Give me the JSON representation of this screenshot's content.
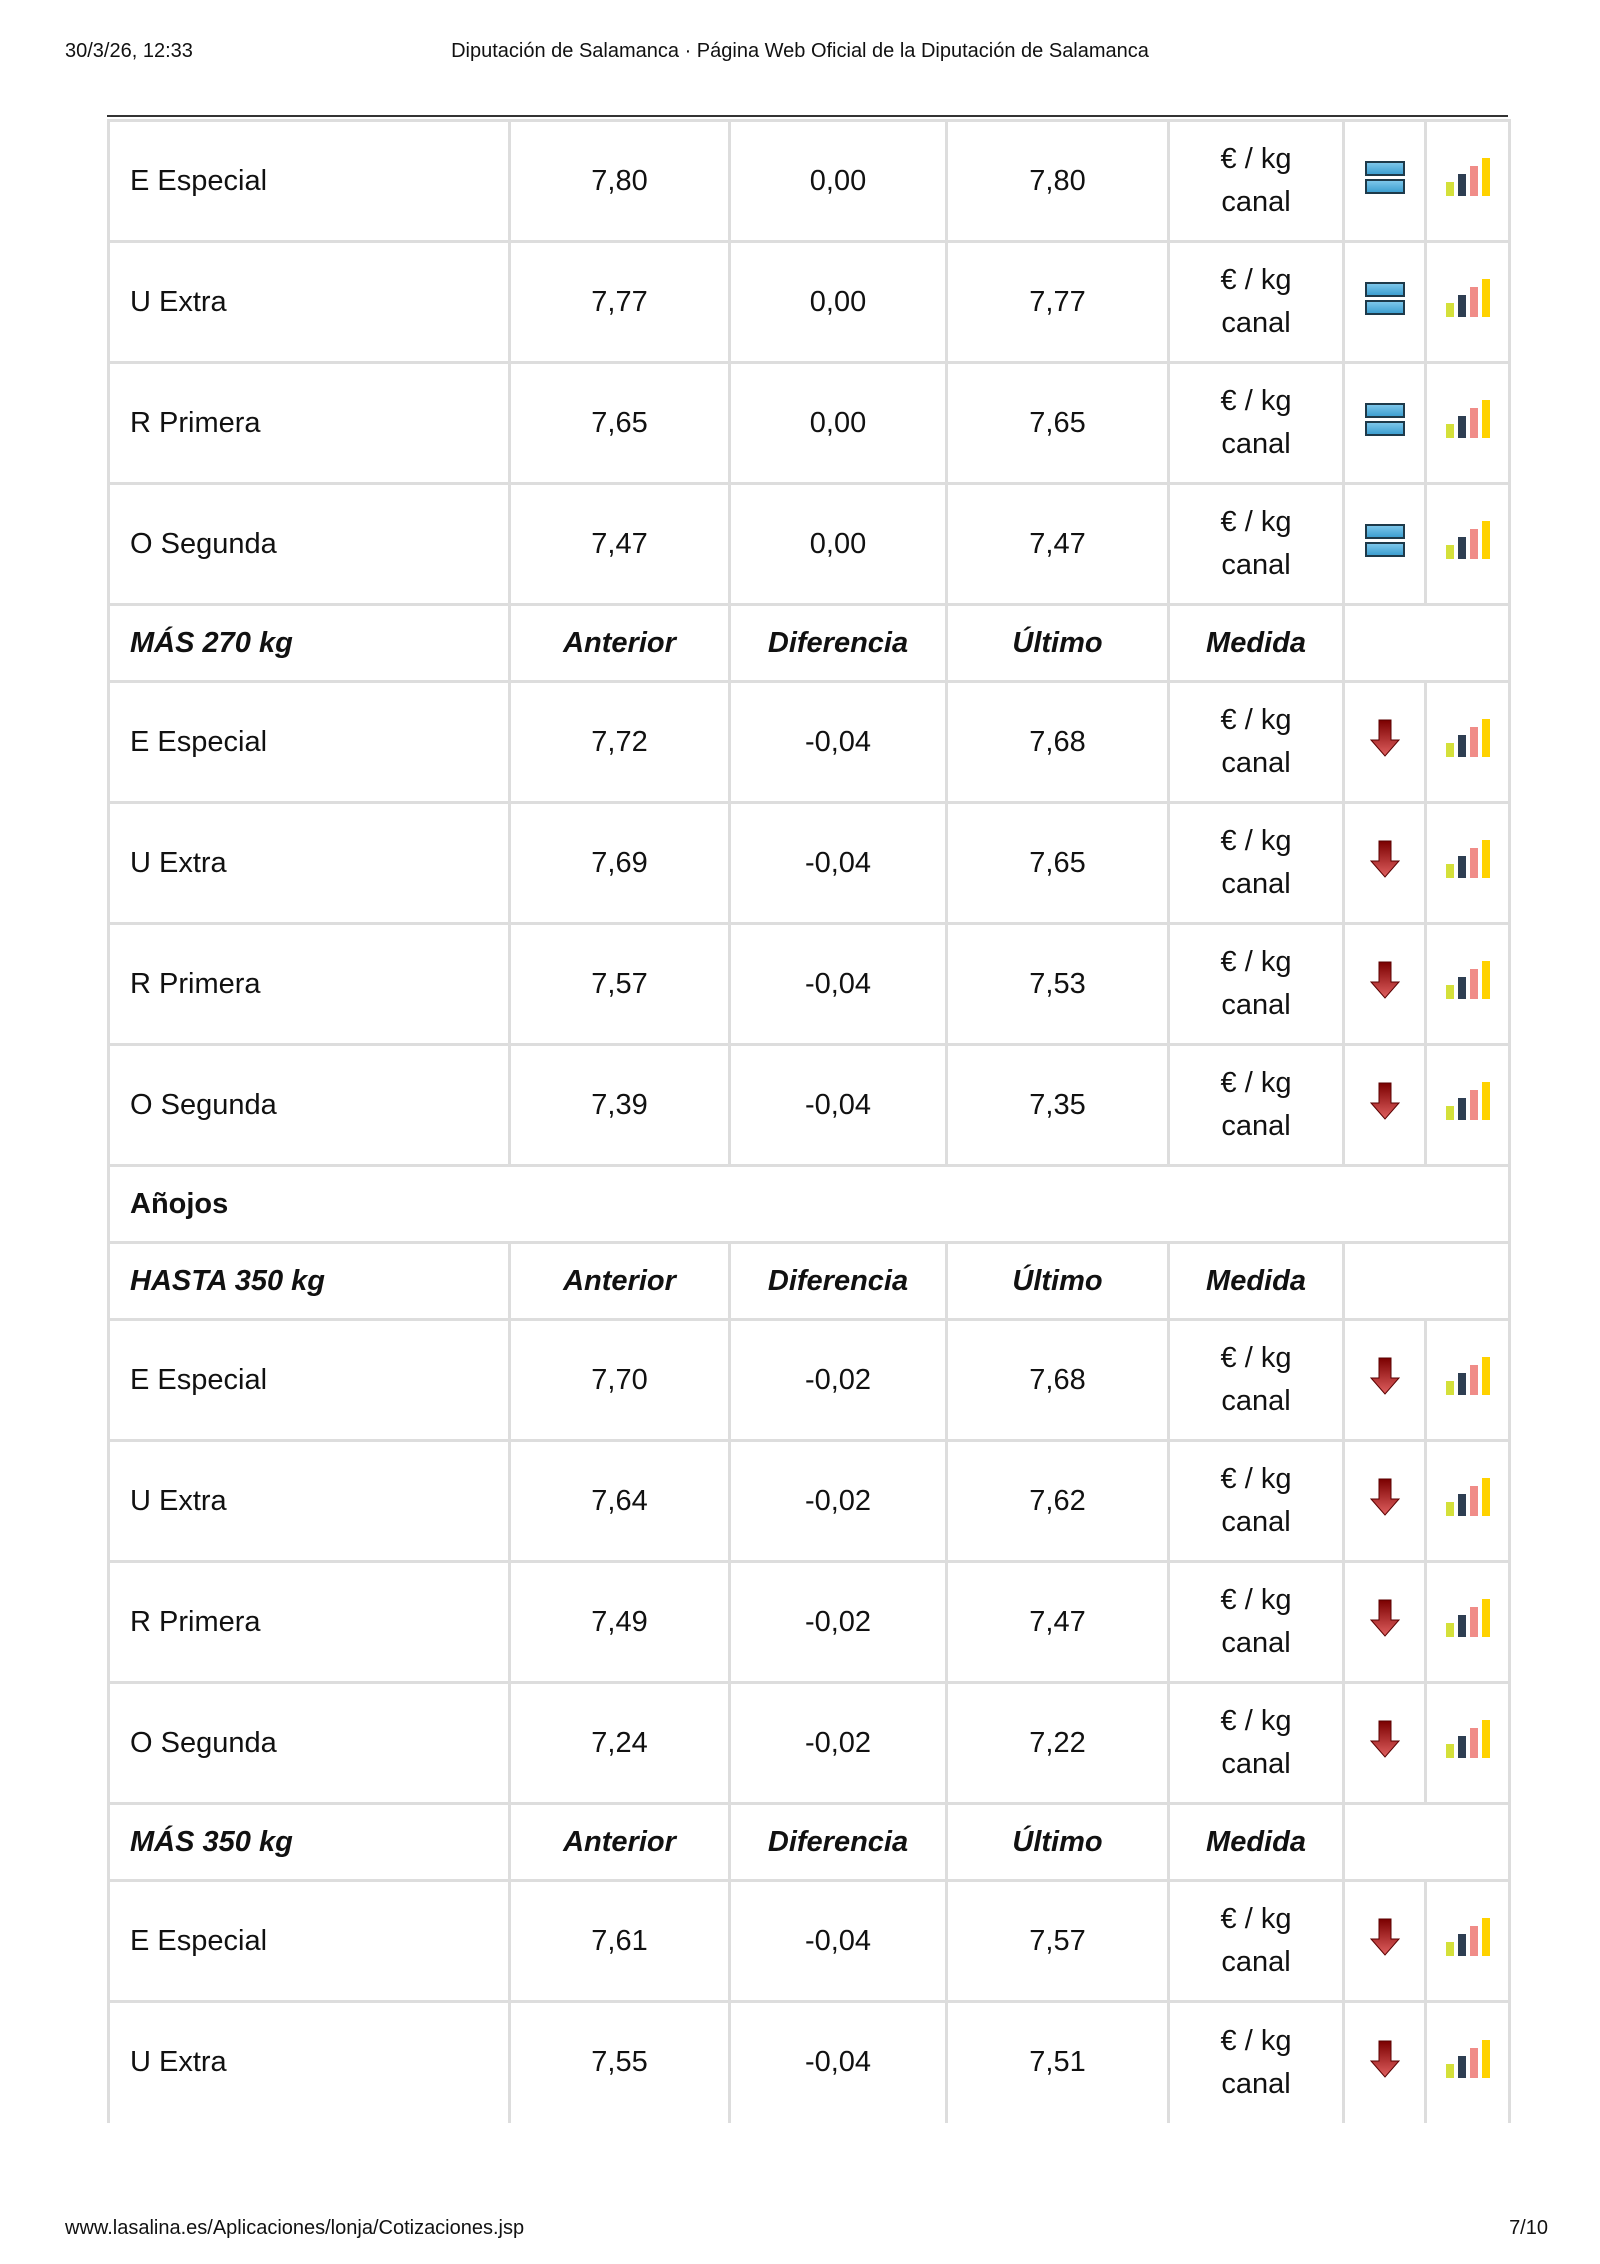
{
  "header": {
    "datetime": "30/3/26, 12:33",
    "title": "Diputación de Salamanca · Página Web Oficial de la Diputación de Salamanca"
  },
  "footer": {
    "url": "www.lasalina.es/Aplicaciones/lonja/Cotizaciones.jsp",
    "page": "7/10"
  },
  "colors": {
    "trend_equal": "#4aa8d8",
    "trend_down": "#b00000",
    "chart_bars": [
      "#d4e03a",
      "#2e3e52",
      "#f08c88",
      "#ffd200"
    ]
  },
  "rows": [
    {
      "type": "item",
      "name": "E Especial",
      "anterior": "7,80",
      "diferencia": "0,00",
      "ultimo": "7,80",
      "medida": [
        "€ / kg",
        "canal"
      ],
      "trend": "equal-icon"
    },
    {
      "type": "item",
      "name": "U Extra",
      "anterior": "7,77",
      "diferencia": "0,00",
      "ultimo": "7,77",
      "medida": [
        "€ / kg",
        "canal"
      ],
      "trend": "equal-icon"
    },
    {
      "type": "item",
      "name": "R Primera",
      "anterior": "7,65",
      "diferencia": "0,00",
      "ultimo": "7,65",
      "medida": [
        "€ / kg",
        "canal"
      ],
      "trend": "equal-icon"
    },
    {
      "type": "item",
      "name": "O Segunda",
      "anterior": "7,47",
      "diferencia": "0,00",
      "ultimo": "7,47",
      "medida": [
        "€ / kg",
        "canal"
      ],
      "trend": "equal-icon"
    },
    {
      "type": "header",
      "name": "MÁS 270 kg",
      "anterior": "Anterior",
      "diferencia": "Diferencia",
      "ultimo": "Último",
      "medida": "Medida"
    },
    {
      "type": "item",
      "name": "E Especial",
      "anterior": "7,72",
      "diferencia": "-0,04",
      "ultimo": "7,68",
      "medida": [
        "€ / kg",
        "canal"
      ],
      "trend": "arrow-down-icon"
    },
    {
      "type": "item",
      "name": "U Extra",
      "anterior": "7,69",
      "diferencia": "-0,04",
      "ultimo": "7,65",
      "medida": [
        "€ / kg",
        "canal"
      ],
      "trend": "arrow-down-icon"
    },
    {
      "type": "item",
      "name": "R Primera",
      "anterior": "7,57",
      "diferencia": "-0,04",
      "ultimo": "7,53",
      "medida": [
        "€ / kg",
        "canal"
      ],
      "trend": "arrow-down-icon"
    },
    {
      "type": "item",
      "name": "O Segunda",
      "anterior": "7,39",
      "diferencia": "-0,04",
      "ultimo": "7,35",
      "medida": [
        "€ / kg",
        "canal"
      ],
      "trend": "arrow-down-icon"
    },
    {
      "type": "section",
      "name": "Añojos"
    },
    {
      "type": "header",
      "name": "HASTA 350 kg",
      "anterior": "Anterior",
      "diferencia": "Diferencia",
      "ultimo": "Último",
      "medida": "Medida"
    },
    {
      "type": "item",
      "name": "E Especial",
      "anterior": "7,70",
      "diferencia": "-0,02",
      "ultimo": "7,68",
      "medida": [
        "€ / kg",
        "canal"
      ],
      "trend": "arrow-down-icon"
    },
    {
      "type": "item",
      "name": "U Extra",
      "anterior": "7,64",
      "diferencia": "-0,02",
      "ultimo": "7,62",
      "medida": [
        "€ / kg",
        "canal"
      ],
      "trend": "arrow-down-icon"
    },
    {
      "type": "item",
      "name": "R Primera",
      "anterior": "7,49",
      "diferencia": "-0,02",
      "ultimo": "7,47",
      "medida": [
        "€ / kg",
        "canal"
      ],
      "trend": "arrow-down-icon"
    },
    {
      "type": "item",
      "name": "O Segunda",
      "anterior": "7,24",
      "diferencia": "-0,02",
      "ultimo": "7,22",
      "medida": [
        "€ / kg",
        "canal"
      ],
      "trend": "arrow-down-icon"
    },
    {
      "type": "header",
      "name": "MÁS 350 kg",
      "anterior": "Anterior",
      "diferencia": "Diferencia",
      "ultimo": "Último",
      "medida": "Medida"
    },
    {
      "type": "item",
      "name": "E Especial",
      "anterior": "7,61",
      "diferencia": "-0,04",
      "ultimo": "7,57",
      "medida": [
        "€ / kg",
        "canal"
      ],
      "trend": "arrow-down-icon"
    },
    {
      "type": "item",
      "name": "U Extra",
      "anterior": "7,55",
      "diferencia": "-0,04",
      "ultimo": "7,51",
      "medida": [
        "€ / kg",
        "canal"
      ],
      "trend": "arrow-down-icon"
    }
  ]
}
